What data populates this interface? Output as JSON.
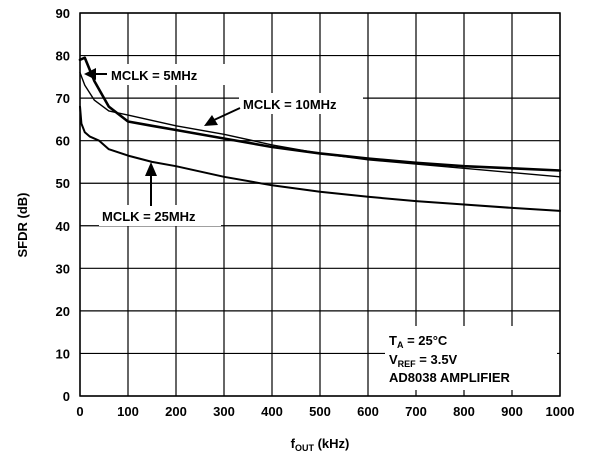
{
  "chart_data": {
    "type": "line",
    "xlabel": {
      "main": "f",
      "sub": "OUT",
      "unit": " (kHz)"
    },
    "ylabel": "SFDR (dB)",
    "xlim": [
      0,
      1000
    ],
    "ylim": [
      0,
      90
    ],
    "xticks": [
      0,
      100,
      200,
      300,
      400,
      500,
      600,
      700,
      800,
      900,
      1000
    ],
    "yticks": [
      0,
      10,
      20,
      30,
      40,
      50,
      60,
      70,
      80,
      90
    ],
    "grid": true,
    "series": [
      {
        "name": "MCLK = 5MHz",
        "x": [
          0,
          10,
          30,
          60,
          100,
          150,
          200,
          300,
          400,
          500,
          600,
          700,
          800,
          900,
          1000
        ],
        "y": [
          79,
          79.5,
          74,
          68,
          64.5,
          63.5,
          62.5,
          60.5,
          58.5,
          57,
          55.8,
          54.8,
          54,
          53.5,
          53
        ]
      },
      {
        "name": "MCLK = 10MHz",
        "x": [
          0,
          10,
          30,
          60,
          100,
          200,
          300,
          400,
          500,
          600,
          700,
          800,
          900,
          1000
        ],
        "y": [
          76,
          73,
          69.5,
          67,
          66,
          63.5,
          61.5,
          59,
          57,
          55.5,
          54.5,
          53.5,
          52.5,
          51.5
        ]
      },
      {
        "name": "MCLK = 25MHz",
        "x": [
          0,
          3,
          10,
          20,
          40,
          60,
          100,
          150,
          200,
          300,
          400,
          500,
          600,
          700,
          800,
          900,
          1000
        ],
        "y": [
          68,
          64,
          62,
          61,
          60,
          58,
          56.5,
          55,
          54,
          51.5,
          49.5,
          48,
          46.8,
          45.8,
          45,
          44.2,
          43.5
        ]
      }
    ],
    "labels": [
      {
        "series": 0,
        "text": "MCLK = 5MHz"
      },
      {
        "series": 1,
        "text": "MCLK = 10MHz"
      },
      {
        "series": 2,
        "text": "MCLK = 25MHz"
      }
    ],
    "annotation": {
      "line1": {
        "main": "T",
        "sub": "A",
        "rest": " = 25°C"
      },
      "line2": {
        "main": "V",
        "sub": "REF",
        "rest": " = 3.5V"
      },
      "line3": "AD8038 AMPLIFIER"
    }
  }
}
